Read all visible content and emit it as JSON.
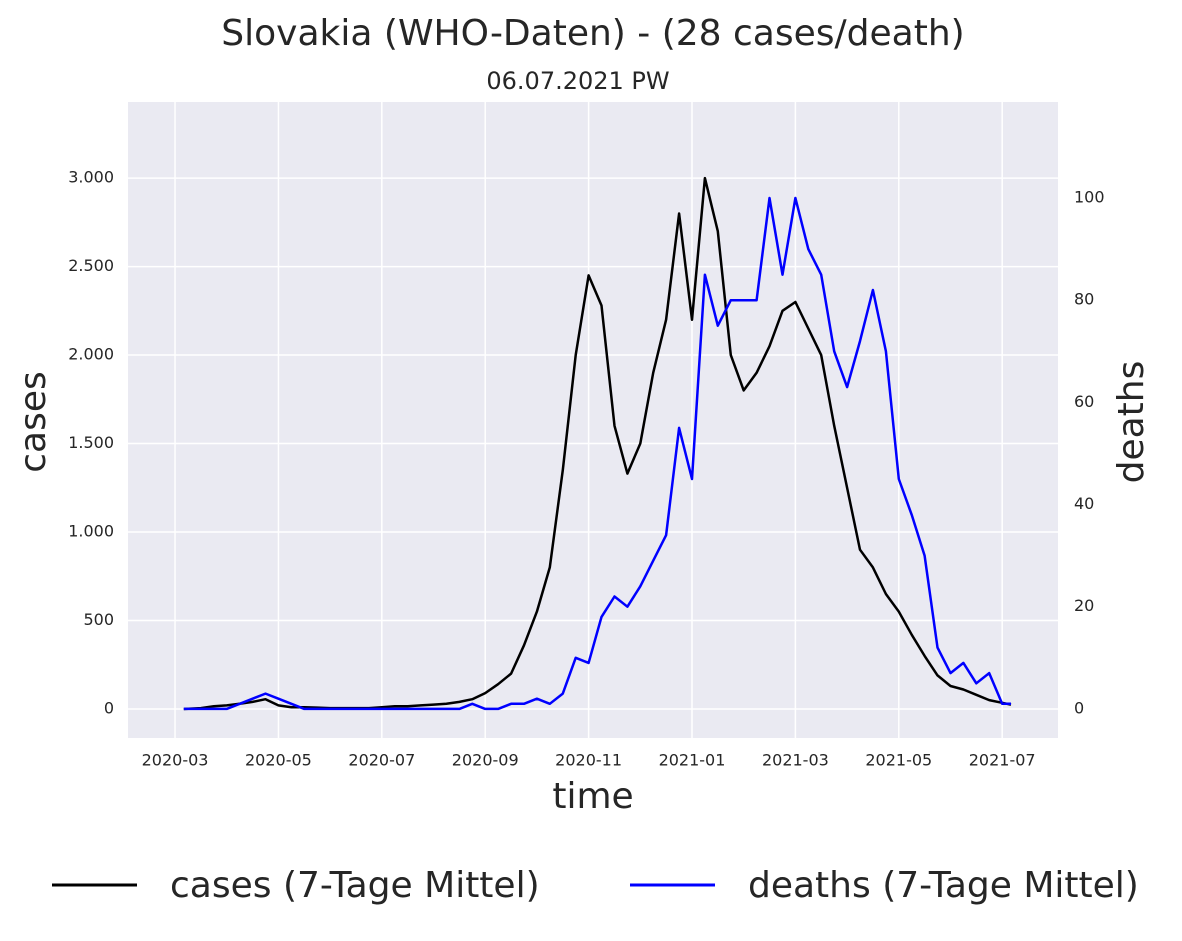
{
  "chart_data": {
    "type": "line",
    "title": "Slovakia (WHO-Daten) - (28 cases/death)",
    "subtitle": "06.07.2021 PW",
    "xlabel": "time",
    "ylabel": "cases",
    "y2label": "deaths",
    "x": [
      0.17,
      0.5,
      0.75,
      1,
      1.25,
      1.5,
      1.75,
      2,
      2.25,
      2.5,
      2.75,
      3,
      3.25,
      3.5,
      3.75,
      4,
      4.25,
      4.5,
      4.75,
      5,
      5.25,
      5.5,
      5.75,
      6,
      6.25,
      6.5,
      6.75,
      7,
      7.25,
      7.5,
      7.75,
      8,
      8.25,
      8.5,
      8.75,
      9,
      9.25,
      9.5,
      9.75,
      10,
      10.25,
      10.5,
      10.75,
      11,
      11.25,
      11.5,
      11.75,
      12,
      12.25,
      12.5,
      12.75,
      13,
      13.25,
      13.5,
      13.75,
      14,
      14.25,
      14.5,
      14.75,
      15,
      15.25,
      15.5,
      15.75,
      16,
      16.17
    ],
    "series": [
      {
        "name": "cases (7-Tage Mittel)",
        "color": "#000000",
        "values": [
          0,
          5,
          15,
          20,
          30,
          40,
          55,
          20,
          10,
          10,
          8,
          5,
          5,
          5,
          5,
          10,
          15,
          15,
          20,
          25,
          30,
          40,
          55,
          90,
          140,
          200,
          360,
          550,
          800,
          1350,
          2000,
          2450,
          2280,
          1600,
          1330,
          1500,
          1900,
          2200,
          2800,
          2200,
          3000,
          2700,
          2000,
          1800,
          1900,
          2050,
          2250,
          2300,
          2150,
          2000,
          1600,
          1250,
          900,
          800,
          650,
          550,
          420,
          300,
          190,
          130,
          110,
          80,
          50,
          35,
          25
        ]
      },
      {
        "name": "deaths (7-Tage Mittel)",
        "color": "#0000ff",
        "axis": "y2",
        "values": [
          0,
          0,
          0,
          0,
          1,
          2,
          3,
          2,
          1,
          0,
          0,
          0,
          0,
          0,
          0,
          0,
          0,
          0,
          0,
          0,
          0,
          0,
          1,
          0,
          0,
          1,
          1,
          2,
          1,
          3,
          10,
          9,
          18,
          22,
          20,
          24,
          29,
          34,
          55,
          45,
          85,
          75,
          80,
          80,
          80,
          100,
          85,
          100,
          90,
          85,
          70,
          63,
          72,
          82,
          70,
          45,
          38,
          30,
          12,
          7,
          9,
          5,
          7,
          1,
          1
        ]
      }
    ],
    "xlim": [
      -0.91,
      17.08
    ],
    "xticks": [
      {
        "value": 0,
        "label": "2020-03"
      },
      {
        "value": 2,
        "label": "2020-05"
      },
      {
        "value": 4,
        "label": "2020-07"
      },
      {
        "value": 6,
        "label": "2020-09"
      },
      {
        "value": 8,
        "label": "2020-11"
      },
      {
        "value": 10,
        "label": "2021-01"
      },
      {
        "value": 12,
        "label": "2021-03"
      },
      {
        "value": 14,
        "label": "2021-05"
      },
      {
        "value": 16,
        "label": "2021-07"
      }
    ],
    "ylim": [
      -164,
      3430
    ],
    "yticks": [
      0,
      500,
      {
        "value": 1000,
        "label": "1.000"
      },
      {
        "value": 1500,
        "label": "1.500"
      },
      {
        "value": 2000,
        "label": "2.000"
      },
      {
        "value": 2500,
        "label": "2.500"
      },
      {
        "value": 3000,
        "label": "3.000"
      }
    ],
    "y2lim": [
      -5.7,
      118.8
    ],
    "y2ticks": [
      0,
      20,
      40,
      60,
      80,
      100
    ],
    "grid": true
  }
}
